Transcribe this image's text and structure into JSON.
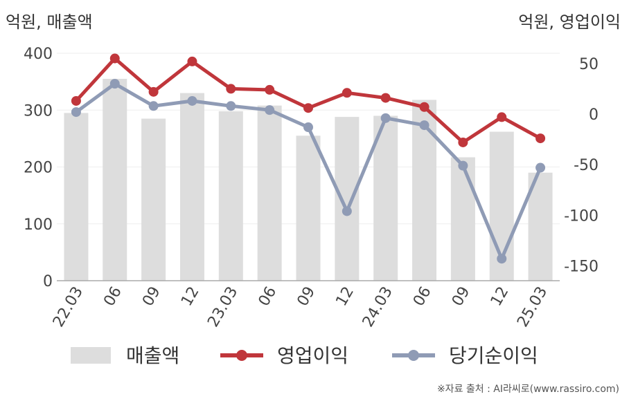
{
  "chart_data": {
    "type": "bar",
    "left_axis_title": "억원, 매출액",
    "right_axis_title": "억원, 영업이익",
    "categories": [
      "22.03",
      "06",
      "09",
      "12",
      "23.03",
      "06",
      "09",
      "12",
      "24.03",
      "06",
      "09",
      "12",
      "25.03"
    ],
    "left_ticks": [
      "0",
      "100",
      "200",
      "300",
      "400"
    ],
    "right_ticks": [
      "50",
      "0",
      "-50",
      "-100",
      "-150"
    ],
    "left_ylim": [
      0,
      400
    ],
    "right_ylim": [
      -165,
      60
    ],
    "series": [
      {
        "name": "매출액",
        "type": "bar",
        "axis": "left",
        "color": "#dddddd",
        "values": [
          295,
          355,
          285,
          330,
          298,
          308,
          255,
          288,
          290,
          318,
          217,
          262,
          190
        ]
      },
      {
        "name": "영업이익",
        "type": "line",
        "axis": "right",
        "color": "#c0363b",
        "values": [
          13,
          55,
          22,
          52,
          25,
          24,
          6,
          21,
          16,
          7,
          -28,
          -3,
          -24
        ]
      },
      {
        "name": "당기순이익",
        "type": "line",
        "axis": "right",
        "color": "#8f9bb5",
        "values": [
          2,
          30,
          8,
          13,
          8,
          4,
          -13,
          -96,
          -4,
          -11,
          -51,
          -143,
          -53
        ]
      }
    ],
    "legend_position": "bottom",
    "grid": true
  },
  "source": "※자료 출처 : AI라씨로(www.rassiro.com)"
}
